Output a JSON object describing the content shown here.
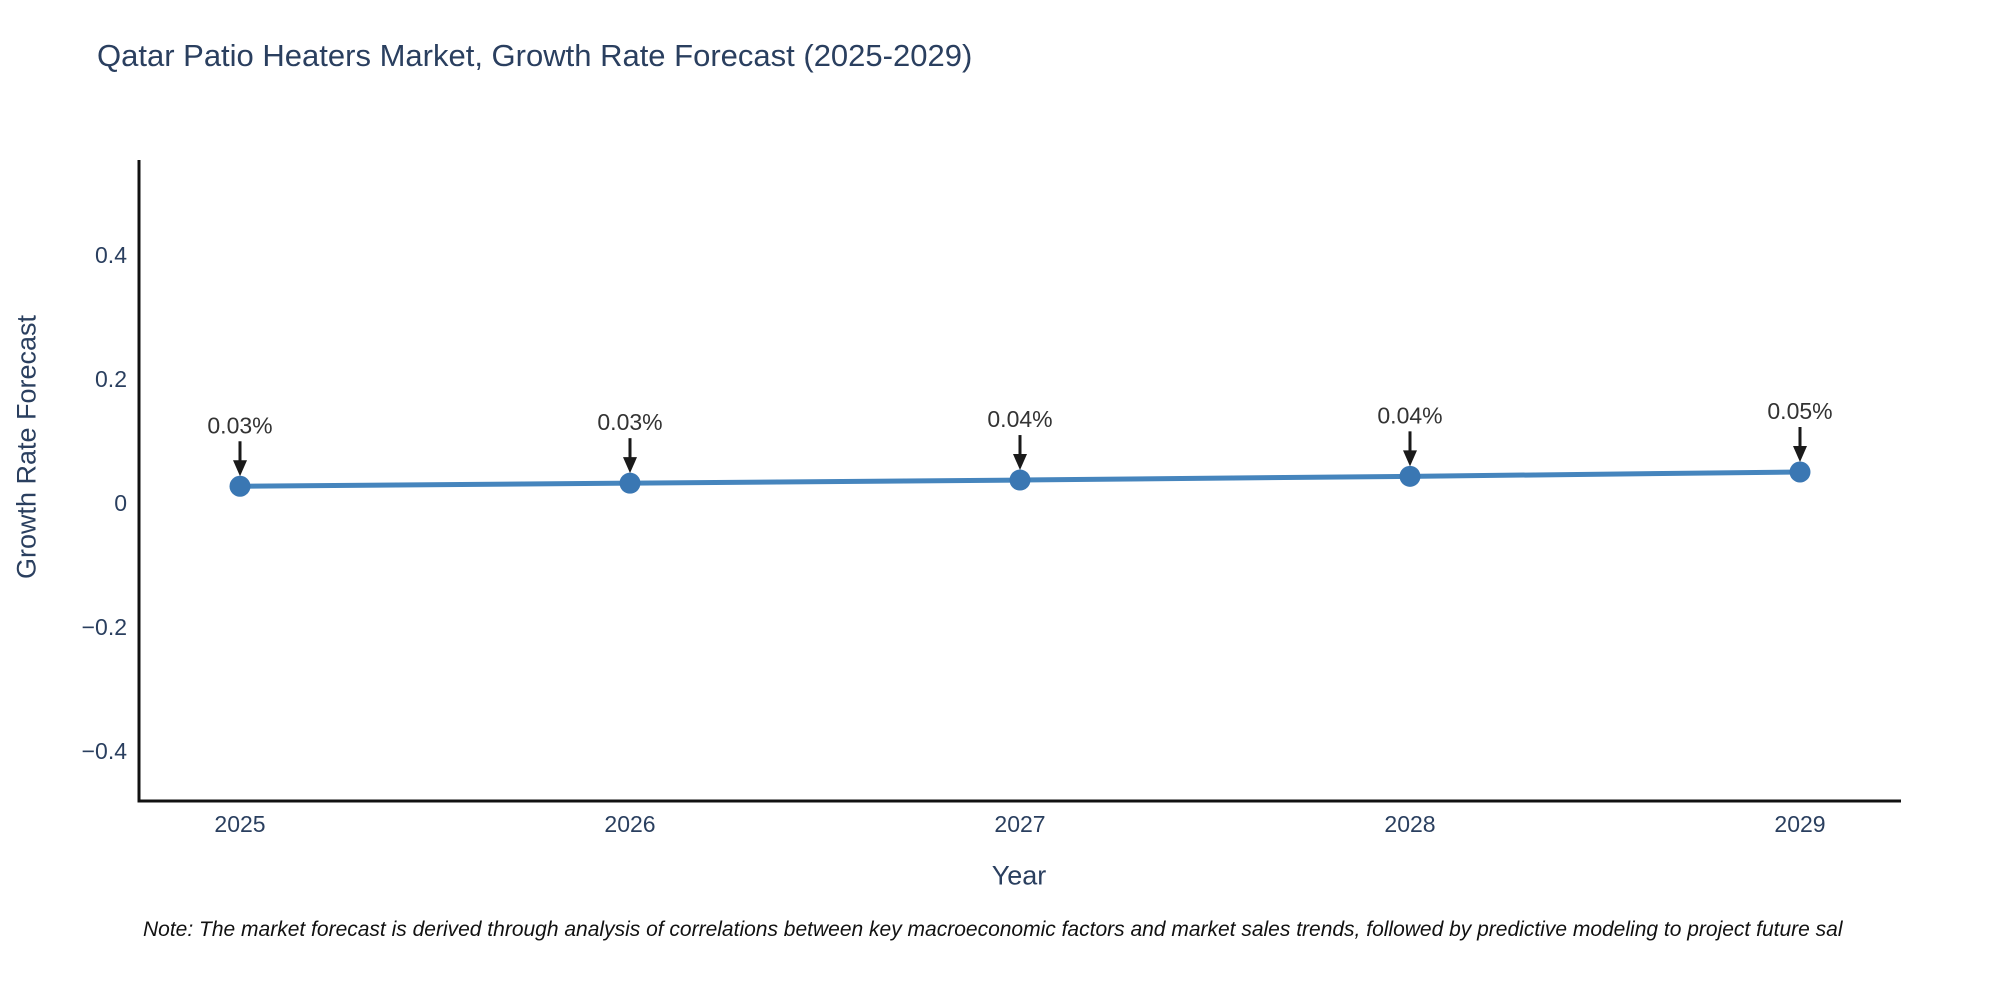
{
  "chart_data": {
    "type": "line",
    "title": "Qatar Patio Heaters Market, Growth Rate Forecast (2025-2029)",
    "xlabel": "Year",
    "ylabel": "Growth Rate Forecast",
    "x": [
      2025,
      2026,
      2027,
      2028,
      2029
    ],
    "y": [
      0.03,
      0.03,
      0.04,
      0.04,
      0.05
    ],
    "y_plotted_estimate": [
      0.027,
      0.032,
      0.037,
      0.043,
      0.05
    ],
    "point_labels": [
      "0.03%",
      "0.03%",
      "0.04%",
      "0.04%",
      "0.05%"
    ],
    "xticks": [
      2025,
      2026,
      2027,
      2028,
      2029
    ],
    "xtick_labels": [
      "2025",
      "2026",
      "2027",
      "2028",
      "2029"
    ],
    "yticks": [
      0.4,
      0.2,
      0,
      -0.2,
      -0.4
    ],
    "ytick_labels": [
      "0.4",
      "0.2",
      "0",
      "−0.2",
      "−0.4"
    ],
    "xlim": [
      2024.74,
      2029.26
    ],
    "ylim": [
      -0.48,
      0.55
    ],
    "grid": false,
    "legend": null,
    "line_color": "#4685bd",
    "marker_color": "#3a77b3",
    "axis_color": "#111111",
    "annotation_text_color": "#333333",
    "annotation_arrow_color": "#1a1a1a",
    "title_color": "#2a3f5f",
    "tick_color": "#2a3f5f",
    "background_color": "#ffffff"
  },
  "note": {
    "text": "Note: The market forecast is derived through analysis of correlations between key macroeconomic factors and market sales trends, followed by predictive modeling to project future sal"
  }
}
